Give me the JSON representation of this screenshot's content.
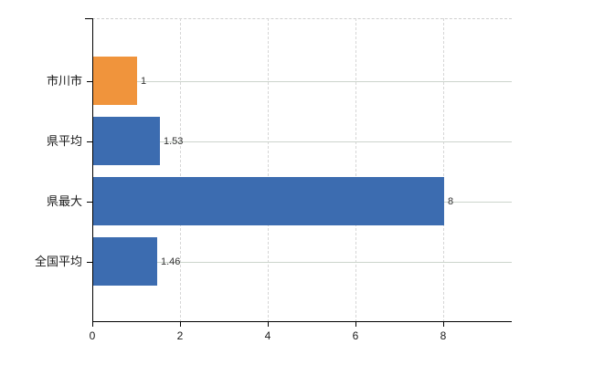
{
  "chart_data": {
    "type": "bar",
    "orientation": "horizontal",
    "title": "",
    "xlabel": "",
    "ylabel": "",
    "categories": [
      "市川市",
      "県平均",
      "県最大",
      "全国平均"
    ],
    "values": [
      1,
      1.53,
      8,
      1.46
    ],
    "value_labels": [
      "1",
      "1.53",
      "8",
      "1.46"
    ],
    "bar_colors": [
      "#f0943c",
      "#3c6cb0",
      "#3c6cb0",
      "#3c6cb0"
    ],
    "highlight_color": "#f0943c",
    "base_color": "#3c6cb0",
    "xlim": [
      0,
      9.56
    ],
    "xticks": [
      0,
      2,
      4,
      6,
      8
    ],
    "xtick_labels": [
      "0",
      "2",
      "4",
      "6",
      "8"
    ],
    "grid": true,
    "legend_position": "none"
  },
  "colors": {
    "background": "#ffffff",
    "axis": "#000000",
    "horizontal_grid": "#ccd4cc",
    "vertical_grid": "#d6d6d6",
    "top_border": "#cfcfcf",
    "category_text": "#1a1a1a",
    "value_text": "#333333"
  }
}
